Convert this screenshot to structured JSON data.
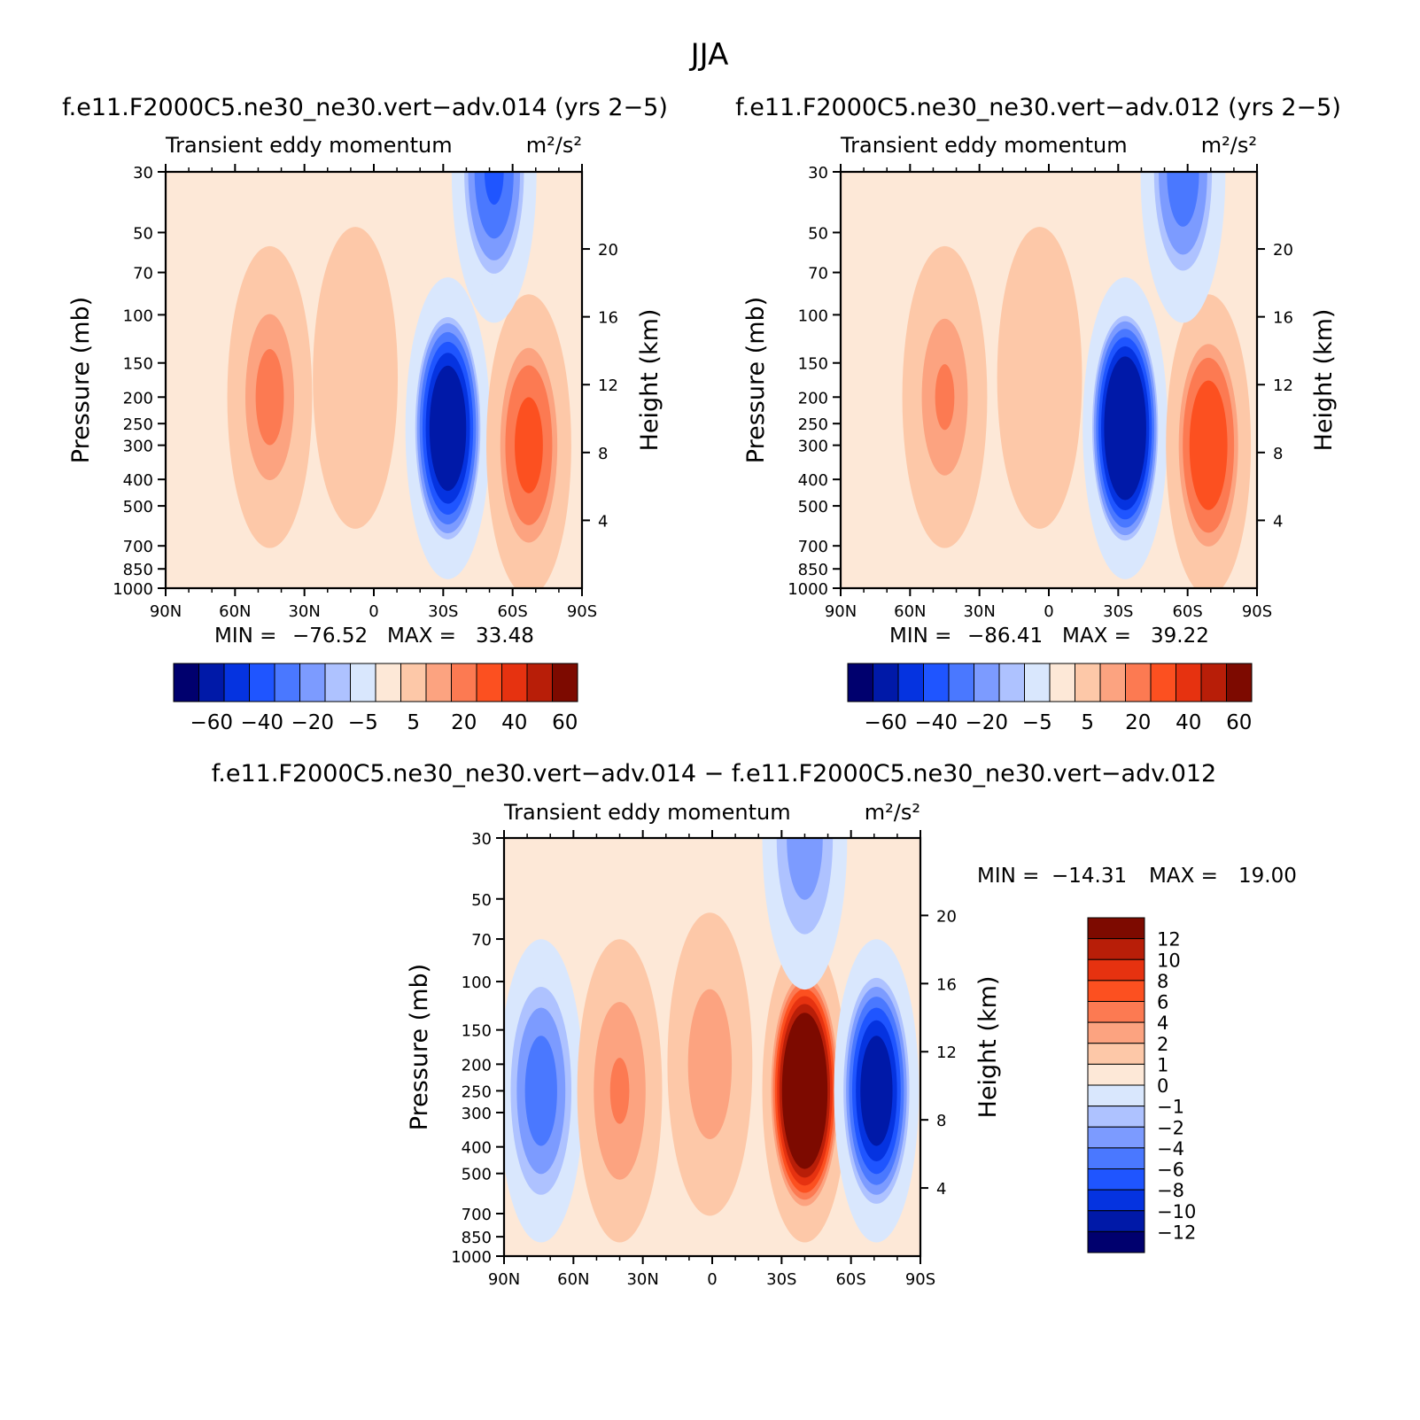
{
  "figure": {
    "title": "JJA",
    "colors": {
      "background": "#ffffff",
      "axis": "#000000"
    }
  },
  "chart_data": [
    {
      "type": "heatmap",
      "id": "case-014",
      "title": "f.e11.F2000C5.ne30_ne30.vert−adv.014 (yrs 2−5)",
      "subtitle": "Transient eddy momentum",
      "units": "m²/s²",
      "xlabel": "",
      "ylabel": "Pressure (mb)",
      "ylabel_right": "Height (km)",
      "x_ticks": [
        "90N",
        "60N",
        "30N",
        "0",
        "30S",
        "60S",
        "90S"
      ],
      "y_ticks": [
        30,
        50,
        70,
        100,
        150,
        200,
        250,
        300,
        400,
        500,
        700,
        850,
        1000
      ],
      "height_ticks": [
        4,
        8,
        12,
        16,
        20
      ],
      "min_label": "MIN =",
      "min_value": "−76.52",
      "max_label": "MAX =",
      "max_value": "33.48",
      "colorbar": {
        "orientation": "horizontal",
        "tick_labels": [
          "−60",
          "−40",
          "−20",
          "−5",
          "5",
          "20",
          "40",
          "60"
        ],
        "colors": [
          "#00006e",
          "#0019a8",
          "#0533e0",
          "#1f55ff",
          "#4a78ff",
          "#7c9bff",
          "#aec2ff",
          "#d9e7fd",
          "#fde8d7",
          "#fdc8a8",
          "#fca380",
          "#fc7a52",
          "#fc5020",
          "#e63210",
          "#b81e08",
          "#7d0a00"
        ]
      },
      "features": [
        {
          "lat": 45,
          "p": 200,
          "value": 22
        },
        {
          "lat": 8,
          "p": 170,
          "value": 10
        },
        {
          "lat": -32,
          "p": 260,
          "value": -76
        },
        {
          "lat": -67,
          "p": 300,
          "value": 33
        },
        {
          "lat": -52,
          "p": 30,
          "value": -40
        }
      ]
    },
    {
      "type": "heatmap",
      "id": "case-012",
      "title": "f.e11.F2000C5.ne30_ne30.vert−adv.012 (yrs 2−5)",
      "subtitle": "Transient eddy momentum",
      "units": "m²/s²",
      "xlabel": "",
      "ylabel": "Pressure (mb)",
      "ylabel_right": "Height (km)",
      "x_ticks": [
        "90N",
        "60N",
        "30N",
        "0",
        "30S",
        "60S",
        "90S"
      ],
      "y_ticks": [
        30,
        50,
        70,
        100,
        150,
        200,
        250,
        300,
        400,
        500,
        700,
        850,
        1000
      ],
      "height_ticks": [
        4,
        8,
        12,
        16,
        20
      ],
      "min_label": "MIN =",
      "min_value": "−86.41",
      "max_label": "MAX =",
      "max_value": "39.22",
      "colorbar": {
        "orientation": "horizontal",
        "tick_labels": [
          "−60",
          "−40",
          "−20",
          "−5",
          "5",
          "20",
          "40",
          "60"
        ],
        "colors": [
          "#00006e",
          "#0019a8",
          "#0533e0",
          "#1f55ff",
          "#4a78ff",
          "#7c9bff",
          "#aec2ff",
          "#d9e7fd",
          "#fde8d7",
          "#fdc8a8",
          "#fca380",
          "#fc7a52",
          "#fc5020",
          "#e63210",
          "#b81e08",
          "#7d0a00"
        ]
      },
      "features": [
        {
          "lat": 45,
          "p": 200,
          "value": 20
        },
        {
          "lat": 4,
          "p": 170,
          "value": 10
        },
        {
          "lat": -33,
          "p": 260,
          "value": -86
        },
        {
          "lat": -69,
          "p": 300,
          "value": 39
        },
        {
          "lat": -58,
          "p": 30,
          "value": -35
        }
      ]
    },
    {
      "type": "heatmap",
      "id": "difference",
      "title": "f.e11.F2000C5.ne30_ne30.vert−adv.014 − f.e11.F2000C5.ne30_ne30.vert−adv.012",
      "subtitle": "Transient eddy momentum",
      "units": "m²/s²",
      "xlabel": "",
      "ylabel": "Pressure (mb)",
      "ylabel_right": "Height (km)",
      "x_ticks": [
        "90N",
        "60N",
        "30N",
        "0",
        "30S",
        "60S",
        "90S"
      ],
      "y_ticks": [
        30,
        50,
        70,
        100,
        150,
        200,
        250,
        300,
        400,
        500,
        700,
        850,
        1000
      ],
      "height_ticks": [
        4,
        8,
        12,
        16,
        20
      ],
      "min_label": "MIN =",
      "min_value": "−14.31",
      "max_label": "MAX =",
      "max_value": "19.00",
      "colorbar": {
        "orientation": "vertical",
        "tick_labels": [
          "12",
          "10",
          "8",
          "6",
          "4",
          "2",
          "1",
          "0",
          "−1",
          "−2",
          "−4",
          "−6",
          "−8",
          "−10",
          "−12"
        ],
        "colors": [
          "#7d0a00",
          "#b81e08",
          "#e63210",
          "#fc5020",
          "#fc7a52",
          "#fca380",
          "#fdc8a8",
          "#fde8d7",
          "#d9e7fd",
          "#aec2ff",
          "#7c9bff",
          "#4a78ff",
          "#1f55ff",
          "#0533e0",
          "#0019a8",
          "#00006e"
        ]
      },
      "features": [
        {
          "lat": 74,
          "p": 250,
          "value": -7
        },
        {
          "lat": 40,
          "p": 250,
          "value": 4
        },
        {
          "lat": 1,
          "p": 200,
          "value": 3
        },
        {
          "lat": -40,
          "p": 250,
          "value": 19
        },
        {
          "lat": -71,
          "p": 250,
          "value": -14
        },
        {
          "lat": -40,
          "p": 30,
          "value": -5
        }
      ]
    }
  ]
}
